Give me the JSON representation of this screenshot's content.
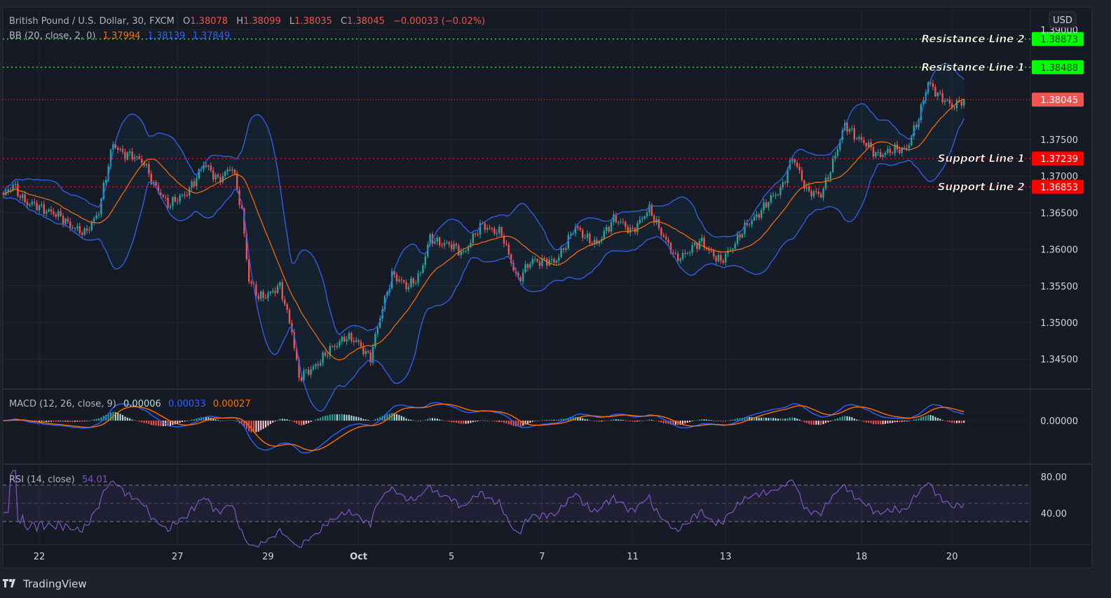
{
  "header": {
    "symbol": "British Pound / U.S. Dollar, 30, FXCM",
    "o_label": "O",
    "o": "1.38078",
    "h_label": "H",
    "h": "1.38099",
    "l_label": "L",
    "l": "1.38035",
    "c_label": "C",
    "c": "1.38045",
    "change": "−0.00033 (−0.02%)"
  },
  "bb_legend": {
    "label": "BB (20, close, 2, 0)",
    "basis": "1.37994",
    "upper": "1.38139",
    "lower": "1.37849"
  },
  "macd_legend": {
    "label": "MACD (12, 26, close, 9)",
    "hist": "0.00006",
    "macd": "0.00033",
    "signal": "0.00027"
  },
  "rsi_legend": {
    "label": "RSI (14, close)",
    "value": "54.01"
  },
  "currency_button": "USD",
  "footer": {
    "brand": "TradingView"
  },
  "colors": {
    "up": "#26a69a",
    "down": "#ef5350",
    "bb_band": "#2f5fe0",
    "bb_basis": "#ff6d00",
    "rsi": "#7e57c2",
    "resistance": "#00ff00",
    "support": "#ff0000"
  },
  "chart_data": {
    "type": "candlestick",
    "title": "British Pound / U.S. Dollar, 30, FXCM",
    "close_keypoints": [
      [
        0,
        1.36724
      ],
      [
        4,
        1.36868
      ],
      [
        10,
        1.36628
      ],
      [
        19,
        1.36533
      ],
      [
        28,
        1.36341
      ],
      [
        34,
        1.36197
      ],
      [
        40,
        1.36533
      ],
      [
        46,
        1.37443
      ],
      [
        51,
        1.37299
      ],
      [
        59,
        1.37203
      ],
      [
        63,
        1.36868
      ],
      [
        69,
        1.36628
      ],
      [
        76,
        1.36724
      ],
      [
        84,
        1.37155
      ],
      [
        90,
        1.36964
      ],
      [
        96,
        1.37107
      ],
      [
        100,
        1.36533
      ],
      [
        103,
        1.35575
      ],
      [
        107,
        1.35335
      ],
      [
        116,
        1.35479
      ],
      [
        121,
        1.34904
      ],
      [
        124,
        1.34234
      ],
      [
        128,
        1.3433
      ],
      [
        134,
        1.34521
      ],
      [
        143,
        1.34808
      ],
      [
        149,
        1.34713
      ],
      [
        154,
        1.34521
      ],
      [
        159,
        1.35192
      ],
      [
        163,
        1.3567
      ],
      [
        169,
        1.35479
      ],
      [
        175,
        1.3567
      ],
      [
        179,
        1.36149
      ],
      [
        187,
        1.36053
      ],
      [
        193,
        1.35958
      ],
      [
        201,
        1.36341
      ],
      [
        209,
        1.36197
      ],
      [
        216,
        1.35575
      ],
      [
        222,
        1.35862
      ],
      [
        231,
        1.35814
      ],
      [
        240,
        1.36293
      ],
      [
        249,
        1.36053
      ],
      [
        256,
        1.36437
      ],
      [
        263,
        1.36245
      ],
      [
        271,
        1.36533
      ],
      [
        276,
        1.36245
      ],
      [
        282,
        1.35862
      ],
      [
        293,
        1.36102
      ],
      [
        301,
        1.35814
      ],
      [
        310,
        1.36245
      ],
      [
        319,
        1.3658
      ],
      [
        326,
        1.3682
      ],
      [
        331,
        1.37251
      ],
      [
        337,
        1.3682
      ],
      [
        343,
        1.36724
      ],
      [
        349,
        1.37299
      ],
      [
        353,
        1.37682
      ],
      [
        360,
        1.3749
      ],
      [
        366,
        1.37299
      ],
      [
        374,
        1.37347
      ],
      [
        379,
        1.37394
      ],
      [
        384,
        1.37778
      ],
      [
        388,
        1.38305
      ],
      [
        393,
        1.38065
      ],
      [
        398,
        1.37969
      ],
      [
        403,
        1.38045
      ]
    ],
    "x_ticks": [
      {
        "bar": 15,
        "label": "22"
      },
      {
        "bar": 73,
        "label": "27"
      },
      {
        "bar": 111,
        "label": "29"
      },
      {
        "bar": 149,
        "label": "Oct"
      },
      {
        "bar": 188,
        "label": "5"
      },
      {
        "bar": 226,
        "label": "7"
      },
      {
        "bar": 264,
        "label": "11"
      },
      {
        "bar": 303,
        "label": "13"
      },
      {
        "bar": 360,
        "label": "18"
      },
      {
        "bar": 398,
        "label": "20"
      }
    ],
    "y_ticks": [
      "1.39000",
      "1.37500",
      "1.37000",
      "1.36500",
      "1.36000",
      "1.35500",
      "1.35000",
      "1.34500"
    ],
    "ylim": [
      1.3415,
      1.3935
    ],
    "levels": [
      {
        "name": "Resistance Line 2",
        "value": "1.38873",
        "kind": "resistance"
      },
      {
        "name": "Resistance Line 1",
        "value": "1.38488",
        "kind": "resistance"
      },
      {
        "name": "Support Line 1",
        "value": "1.37239",
        "kind": "support"
      },
      {
        "name": "Support Line 2",
        "value": "1.36853",
        "kind": "support"
      }
    ],
    "last_price": "1.38045",
    "macd": {
      "y_ticks": [
        "0.00000"
      ]
    },
    "rsi": {
      "y_ticks": [
        "80.00",
        "40.00"
      ],
      "upper_band": 70,
      "mid": 50,
      "lower_band": 30
    }
  }
}
